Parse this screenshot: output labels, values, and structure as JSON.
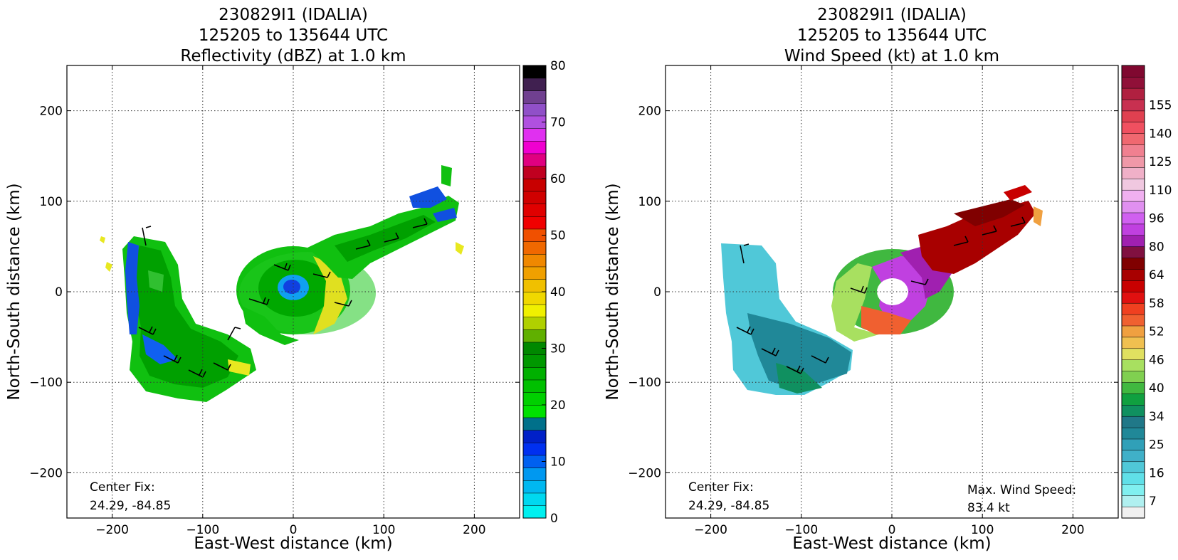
{
  "chart_data": [
    {
      "type": "heatmap",
      "title_lines": [
        "230829I1 (IDALIA)",
        "125205 to 135644 UTC",
        "Reflectivity (dBZ) at 1.0 km"
      ],
      "xlabel": "East-West distance (km)",
      "ylabel": "North-South distance (km)",
      "xlim": [
        -250,
        250
      ],
      "ylim": [
        -250,
        250
      ],
      "xticks": [
        -200,
        -100,
        0,
        100,
        200
      ],
      "yticks": [
        -200,
        -100,
        0,
        100,
        200
      ],
      "grid": true,
      "colorbar": {
        "range": [
          0,
          80
        ],
        "tick_values": [
          0,
          10,
          20,
          30,
          40,
          50,
          60,
          70,
          80
        ],
        "colors": [
          "#00f0f0",
          "#00d8f0",
          "#00b8f0",
          "#0098f0",
          "#0060f0",
          "#0030f0",
          "#0020c8",
          "#00708a",
          "#00e000",
          "#00d000",
          "#00c000",
          "#00b000",
          "#009800",
          "#008800",
          "#60b000",
          "#b0d000",
          "#f0f000",
          "#f0d800",
          "#f0c000",
          "#f0a000",
          "#f08800",
          "#f06800",
          "#f05000",
          "#f00000",
          "#e00000",
          "#d00000",
          "#c80000",
          "#c00020",
          "#e00080",
          "#f000d0",
          "#e030f0",
          "#b050e0",
          "#9050c8",
          "#704090",
          "#402050",
          "#000000"
        ]
      },
      "annotation": "Center Fix:\n24.29, -84.85"
    },
    {
      "type": "heatmap",
      "title_lines": [
        "230829I1 (IDALIA)",
        "125205 to 135644 UTC",
        "Wind Speed (kt) at 1.0 km"
      ],
      "xlabel": "East-West distance (km)",
      "ylabel": "North-South distance (km)",
      "xlim": [
        -250,
        250
      ],
      "ylim": [
        -250,
        250
      ],
      "xticks": [
        -200,
        -100,
        0,
        100,
        200
      ],
      "yticks": [
        -200,
        -100,
        0,
        100,
        200
      ],
      "grid": true,
      "colorbar": {
        "tick_labels": [
          "7",
          "16",
          "25",
          "34",
          "40",
          "46",
          "52",
          "58",
          "64",
          "80",
          "96",
          "110",
          "125",
          "140",
          "155"
        ],
        "colors": [
          "#f0f0f0",
          "#b0f0f0",
          "#80f0f0",
          "#60e0e8",
          "#50c8d8",
          "#40b0c8",
          "#30a0b8",
          "#208898",
          "#207888",
          "#109060",
          "#10a040",
          "#40b840",
          "#80d050",
          "#a8e060",
          "#e0e060",
          "#f0c050",
          "#f0a040",
          "#f06030",
          "#f04020",
          "#e01010",
          "#c80000",
          "#a80000",
          "#800000",
          "#801040",
          "#a020b0",
          "#c040e0",
          "#d060f0",
          "#e090f0",
          "#f0b0f0",
          "#f0c8e0",
          "#f0b0c8",
          "#f098a8",
          "#f08090",
          "#f06870",
          "#f05060",
          "#e04050",
          "#c83050",
          "#b02040",
          "#901038",
          "#800830"
        ]
      },
      "annotation": "Center Fix:\n24.29, -84.85",
      "annotation2": "Max. Wind Speed:\n83.4 kt"
    }
  ]
}
